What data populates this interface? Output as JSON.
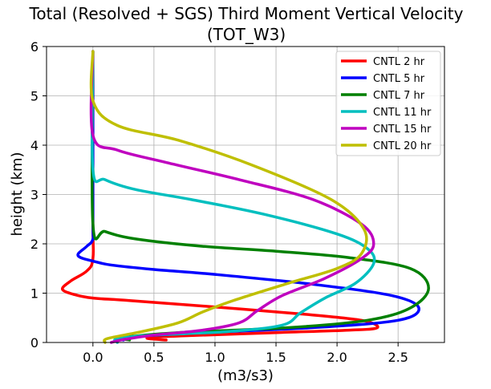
{
  "chart_data": {
    "type": "line",
    "title": "Total (Resolved + SGS) Third Moment Vertical Velocity",
    "subtitle": "(TOT_W3)",
    "xlabel": "(m3/s3)",
    "ylabel": "height (km)",
    "xlim": [
      -0.38,
      2.88
    ],
    "ylim": [
      0,
      6
    ],
    "xticks": [
      0.0,
      0.5,
      1.0,
      1.5,
      2.0,
      2.5
    ],
    "xtick_labels": [
      "0.0",
      "0.5",
      "1.0",
      "1.5",
      "2.0",
      "2.5"
    ],
    "yticks": [
      0,
      1,
      2,
      3,
      4,
      5,
      6
    ],
    "ytick_labels": [
      "0",
      "1",
      "2",
      "3",
      "4",
      "5",
      "6"
    ],
    "grid": true,
    "legend_position": "top-right",
    "series": [
      {
        "name": "CNTL 2 hr",
        "color": "#ff0000",
        "points": [
          [
            0.6,
            0.05
          ],
          [
            0.45,
            0.08
          ],
          [
            0.5,
            0.11
          ],
          [
            0.8,
            0.14
          ],
          [
            1.5,
            0.2
          ],
          [
            2.1,
            0.25
          ],
          [
            2.33,
            0.3
          ],
          [
            2.2,
            0.45
          ],
          [
            1.7,
            0.58
          ],
          [
            1.0,
            0.72
          ],
          [
            0.3,
            0.85
          ],
          [
            0.0,
            0.9
          ],
          [
            -0.15,
            0.97
          ],
          [
            -0.25,
            1.08
          ],
          [
            -0.18,
            1.25
          ],
          [
            -0.05,
            1.45
          ],
          [
            0.0,
            1.7
          ],
          [
            0.0,
            2.5
          ],
          [
            0.0,
            5.9
          ]
        ]
      },
      {
        "name": "CNTL 5 hr",
        "color": "#0000ff",
        "points": [
          [
            0.25,
            0.05
          ],
          [
            0.2,
            0.08
          ],
          [
            0.3,
            0.12
          ],
          [
            0.9,
            0.2
          ],
          [
            1.8,
            0.3
          ],
          [
            2.5,
            0.45
          ],
          [
            2.67,
            0.7
          ],
          [
            2.45,
            0.95
          ],
          [
            1.8,
            1.18
          ],
          [
            1.0,
            1.38
          ],
          [
            0.5,
            1.48
          ],
          [
            0.15,
            1.57
          ],
          [
            0.0,
            1.65
          ],
          [
            -0.1,
            1.72
          ],
          [
            -0.12,
            1.8
          ],
          [
            -0.05,
            1.95
          ],
          [
            0.0,
            2.1
          ],
          [
            0.0,
            2.5
          ],
          [
            0.0,
            5.9
          ]
        ]
      },
      {
        "name": "CNTL 7 hr",
        "color": "#008000",
        "points": [
          [
            0.3,
            0.05
          ],
          [
            0.25,
            0.1
          ],
          [
            0.7,
            0.2
          ],
          [
            1.6,
            0.3
          ],
          [
            2.25,
            0.45
          ],
          [
            2.6,
            0.7
          ],
          [
            2.75,
            1.1
          ],
          [
            2.6,
            1.5
          ],
          [
            2.1,
            1.72
          ],
          [
            1.5,
            1.85
          ],
          [
            0.9,
            1.95
          ],
          [
            0.35,
            2.1
          ],
          [
            0.1,
            2.25
          ],
          [
            0.0,
            2.4
          ],
          [
            0.0,
            5.9
          ]
        ]
      },
      {
        "name": "CNTL 11 hr",
        "color": "#00bfbf",
        "points": [
          [
            0.2,
            0.0
          ],
          [
            0.2,
            0.08
          ],
          [
            0.5,
            0.15
          ],
          [
            1.1,
            0.22
          ],
          [
            1.55,
            0.35
          ],
          [
            1.7,
            0.6
          ],
          [
            1.9,
            0.9
          ],
          [
            2.15,
            1.2
          ],
          [
            2.3,
            1.6
          ],
          [
            2.25,
            1.9
          ],
          [
            2.0,
            2.2
          ],
          [
            1.4,
            2.6
          ],
          [
            0.8,
            2.9
          ],
          [
            0.35,
            3.1
          ],
          [
            0.1,
            3.3
          ],
          [
            0.0,
            3.5
          ],
          [
            0.0,
            5.9
          ]
        ]
      },
      {
        "name": "CNTL 15 hr",
        "color": "#bf00bf",
        "points": [
          [
            0.15,
            0.0
          ],
          [
            0.25,
            0.06
          ],
          [
            0.5,
            0.15
          ],
          [
            0.9,
            0.25
          ],
          [
            1.2,
            0.4
          ],
          [
            1.35,
            0.65
          ],
          [
            1.55,
            0.95
          ],
          [
            1.9,
            1.3
          ],
          [
            2.2,
            1.7
          ],
          [
            2.3,
            2.0
          ],
          [
            2.2,
            2.4
          ],
          [
            1.8,
            2.9
          ],
          [
            1.2,
            3.3
          ],
          [
            0.6,
            3.65
          ],
          [
            0.2,
            3.9
          ],
          [
            0.0,
            4.2
          ],
          [
            0.0,
            5.9
          ]
        ]
      },
      {
        "name": "CNTL 20 hr",
        "color": "#bfbf00",
        "points": [
          [
            0.1,
            0.0
          ],
          [
            0.12,
            0.08
          ],
          [
            0.4,
            0.22
          ],
          [
            0.7,
            0.4
          ],
          [
            0.9,
            0.62
          ],
          [
            1.15,
            0.85
          ],
          [
            1.6,
            1.2
          ],
          [
            2.0,
            1.5
          ],
          [
            2.2,
            1.8
          ],
          [
            2.22,
            2.3
          ],
          [
            1.95,
            2.9
          ],
          [
            1.3,
            3.6
          ],
          [
            0.7,
            4.1
          ],
          [
            0.2,
            4.4
          ],
          [
            0.0,
            4.9
          ],
          [
            0.0,
            5.9
          ]
        ]
      }
    ]
  }
}
